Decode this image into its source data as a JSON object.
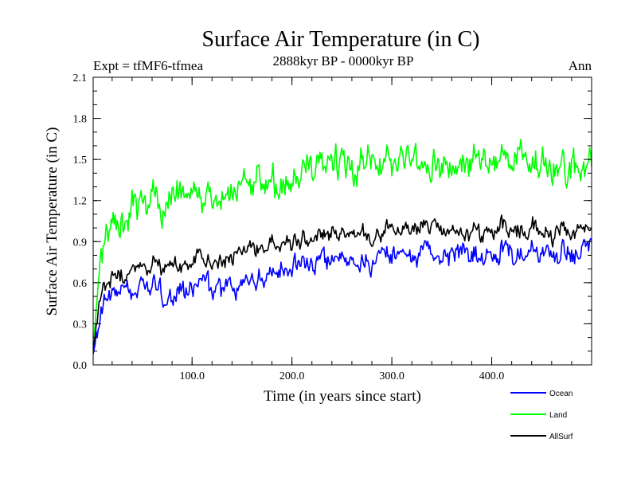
{
  "chart_data": {
    "type": "line",
    "title": "Surface Air Temperature (in C)",
    "subtitle_left": "Expt = tfMF6-tfmea",
    "subtitle_center": "2888kyr BP - 0000kyr BP",
    "subtitle_right": "Ann",
    "xlabel": "Time (in years since start)",
    "ylabel": "Surface Air Temperature (in C)",
    "xlim": [
      1,
      500
    ],
    "ylim": [
      0.0,
      2.1
    ],
    "xticks": [
      100,
      200,
      300,
      400
    ],
    "xtick_labels": [
      "100.0",
      "200.0",
      "300.0",
      "400.0"
    ],
    "yticks": [
      0.0,
      0.3,
      0.6,
      0.9,
      1.2,
      1.5,
      1.8,
      2.1
    ],
    "ytick_labels": [
      "0.0",
      "0.3",
      "0.6",
      "0.9",
      "1.2",
      "1.5",
      "1.8",
      "2.1"
    ],
    "grid": false,
    "legend_position": "bottom-right-outside",
    "series": [
      {
        "name": "Ocean",
        "color": "#0000ff",
        "x_start": 1,
        "x_step": 10,
        "values": [
          0.08,
          0.45,
          0.5,
          0.55,
          0.52,
          0.58,
          0.55,
          0.5,
          0.48,
          0.52,
          0.56,
          0.6,
          0.55,
          0.52,
          0.58,
          0.62,
          0.66,
          0.65,
          0.7,
          0.72,
          0.72,
          0.74,
          0.73,
          0.76,
          0.78,
          0.78,
          0.8,
          0.76,
          0.74,
          0.8,
          0.82,
          0.78,
          0.8,
          0.84,
          0.8,
          0.78,
          0.82,
          0.84,
          0.8,
          0.78,
          0.82,
          0.84,
          0.8,
          0.78,
          0.84,
          0.82,
          0.8,
          0.84,
          0.8,
          0.86
        ],
        "noise": 0.12
      },
      {
        "name": "Land",
        "color": "#00ff00",
        "x_start": 1,
        "x_step": 10,
        "values": [
          0.15,
          0.9,
          1.0,
          1.05,
          1.15,
          1.1,
          1.18,
          1.15,
          1.2,
          1.22,
          1.25,
          1.2,
          1.18,
          1.2,
          1.28,
          1.32,
          1.36,
          1.35,
          1.4,
          1.32,
          1.35,
          1.38,
          1.42,
          1.45,
          1.48,
          1.46,
          1.42,
          1.45,
          1.5,
          1.52,
          1.48,
          1.5,
          1.55,
          1.48,
          1.45,
          1.5,
          1.48,
          1.46,
          1.52,
          1.5,
          1.48,
          1.52,
          1.5,
          1.48,
          1.5,
          1.46,
          1.42,
          1.4,
          1.42,
          1.45
        ],
        "noise": 0.18
      },
      {
        "name": "AllSurf",
        "color": "#000000",
        "x_start": 1,
        "x_step": 10,
        "values": [
          0.12,
          0.58,
          0.62,
          0.66,
          0.68,
          0.72,
          0.72,
          0.68,
          0.7,
          0.72,
          0.76,
          0.78,
          0.74,
          0.72,
          0.78,
          0.84,
          0.88,
          0.86,
          0.9,
          0.88,
          0.88,
          0.9,
          0.92,
          0.94,
          0.96,
          0.96,
          0.96,
          0.94,
          0.92,
          0.98,
          1.0,
          0.96,
          0.98,
          1.02,
          0.98,
          0.96,
          0.98,
          1.0,
          0.98,
          0.96,
          1.0,
          1.02,
          0.98,
          0.96,
          1.0,
          0.98,
          0.96,
          1.0,
          0.98,
          1.0
        ],
        "noise": 0.1
      }
    ]
  }
}
